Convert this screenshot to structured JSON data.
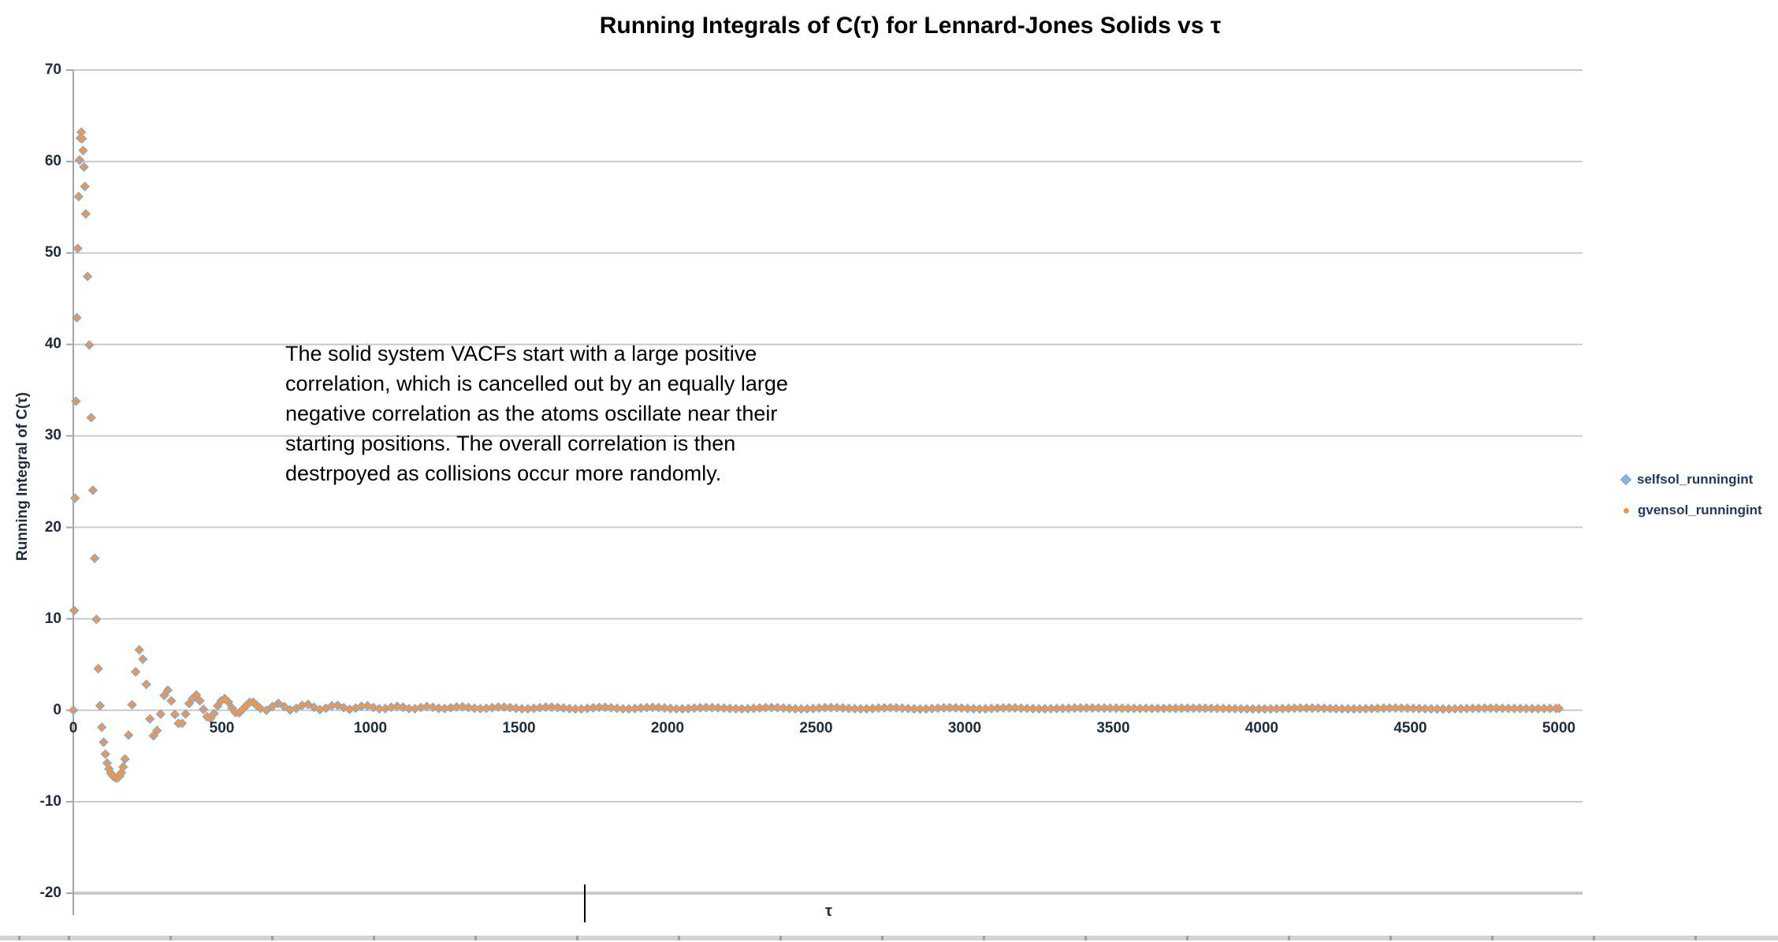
{
  "title": "Running Integrals of C(τ) for Lennard-Jones Solids vs τ",
  "annotation": "The solid system VACFs start with a large positive correlation, which is cancelled out by an equally large negative correlation as the atoms oscillate near their starting positions. The overall correlation is then destrpoyed as collisions occur more randomly.",
  "axis_titles": {
    "y": "Running Integral of C(τ)",
    "x": "τ"
  },
  "legend": {
    "position": "right",
    "entries": [
      {
        "label": "selfsol_runningint",
        "marker": "diamond",
        "color": "#8FB2DA"
      },
      {
        "label": "gvensol_runningint",
        "marker": "circle",
        "color": "#F0964C"
      }
    ]
  },
  "colors": {
    "gridline": "#C9C9C9",
    "axis_line": "#A6A6A6",
    "tick_text": "#1e2c40",
    "legend_text": "#1F3864",
    "series_blue_fill": "#8FB2DA",
    "series_blue_stroke": "#7AA7D2",
    "series_orange_fill": "#F0964C",
    "series_orange_stroke": "#EC8A3C"
  },
  "chart_data": {
    "type": "scatter",
    "title": "Running Integrals of C(τ) for Lennard-Jones Solids vs τ",
    "xlabel": "τ",
    "ylabel": "Running Integral of C(τ)",
    "xlim": [
      0,
      5000
    ],
    "ylim": [
      -20,
      70
    ],
    "grid": true,
    "legend_position": "right",
    "x_ticks": [
      0,
      500,
      1000,
      1500,
      2000,
      2500,
      3000,
      3500,
      4000,
      4500,
      5000
    ],
    "y_ticks": [
      70,
      60,
      50,
      40,
      30,
      20,
      10,
      0,
      -10,
      -20
    ],
    "series": [
      {
        "name": "selfsol_runningint",
        "marker": "diamond",
        "fill": "#8FB2DA",
        "stroke": "#7AA7D2",
        "size": 11
      },
      {
        "name": "gvensol_runningint",
        "marker": "circle",
        "fill": "#F0964C",
        "stroke": "#EC8A3C",
        "size": 7
      }
    ],
    "series_overlap_note": "Both series plot essentially identical values; orange is drawn on top of blue.",
    "curve_knots": {
      "tau": [
        0,
        5,
        10,
        15,
        20,
        25,
        30,
        35,
        40,
        50,
        60,
        70,
        80,
        90,
        100,
        112,
        125,
        138,
        148,
        158,
        168,
        178,
        188,
        198,
        210,
        222,
        235,
        250,
        262,
        275,
        288,
        300,
        312,
        325,
        338,
        350,
        362,
        375,
        388,
        400,
        412,
        425,
        438,
        450,
        462,
        475,
        488,
        500,
        508,
        522,
        535,
        548,
        555,
        570,
        585,
        600,
        615,
        630,
        645,
        660,
        675,
        690,
        705,
        722,
        738,
        755,
        772,
        788,
        805,
        822,
        838,
        855,
        872,
        888,
        905,
        922,
        938,
        955,
        972,
        988,
        1010,
        1040,
        1090,
        1140,
        1190,
        1240,
        1300,
        1370,
        1440,
        1520,
        1600,
        1700,
        1780,
        1860,
        1950,
        2040,
        2130,
        2250,
        2350,
        2450,
        2550,
        2650,
        2750,
        2850,
        2950,
        3050,
        3150,
        3250,
        3400,
        3600,
        3800,
        4000,
        4150,
        4300,
        4450,
        4600,
        4750,
        4900,
        5000
      ],
      "integral": [
        0,
        19.5,
        37,
        50.5,
        59,
        63,
        62.5,
        60,
        56,
        45,
        32,
        19,
        8,
        0.5,
        -3,
        -5.5,
        -6.8,
        -7.3,
        -7.4,
        -7.1,
        -6.2,
        -4.6,
        -2.2,
        0.6,
        4.2,
        6.6,
        5.4,
        1.8,
        -2.0,
        -2.8,
        -1.4,
        0.6,
        2.3,
        1.6,
        0,
        -1.2,
        -1.6,
        -0.7,
        0.6,
        1.2,
        1.7,
        1.1,
        0.1,
        -0.7,
        -0.9,
        -0.3,
        0.6,
        1.1,
        1.3,
        0.9,
        0.2,
        -0.3,
        -0.35,
        0.1,
        0.6,
        0.95,
        0.6,
        0.2,
        -0.05,
        0.2,
        0.5,
        0.75,
        0.5,
        0.15,
        0,
        0.3,
        0.55,
        0.65,
        0.4,
        0.15,
        0.05,
        0.3,
        0.5,
        0.55,
        0.35,
        0.15,
        0.1,
        0.3,
        0.45,
        0.5,
        0.3,
        0.15,
        0.42,
        0.15,
        0.4,
        0.18,
        0.38,
        0.18,
        0.36,
        0.15,
        0.35,
        0.14,
        0.33,
        0.15,
        0.32,
        0.15,
        0.3,
        0.16,
        0.3,
        0.14,
        0.3,
        0.15,
        0.28,
        0.14,
        0.28,
        0.15,
        0.27,
        0.16,
        0.25,
        0.2,
        0.22,
        0.14,
        0.24,
        0.15,
        0.24,
        0.14,
        0.22,
        0.18,
        0.2
      ]
    },
    "marker_sampling": [
      {
        "to": 40,
        "step": 3
      },
      {
        "to": 170,
        "step": 6
      },
      {
        "to": 620,
        "step": 12
      },
      {
        "to": 5000,
        "step": 20
      }
    ]
  }
}
